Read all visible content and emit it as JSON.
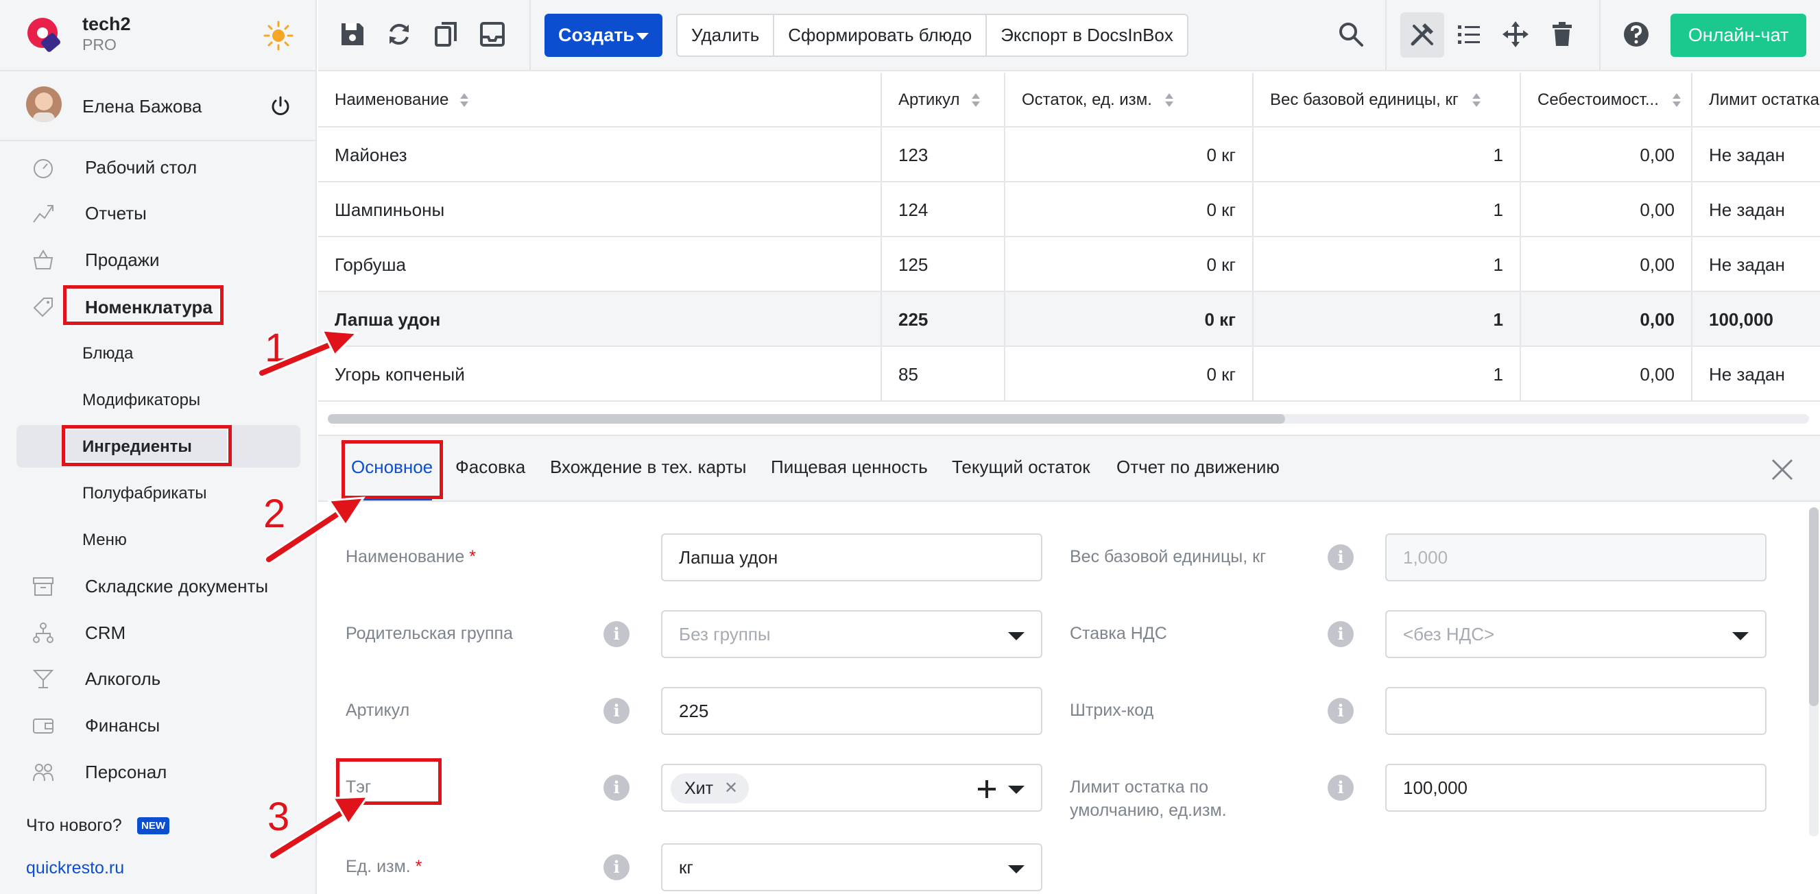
{
  "brand": {
    "name": "tech2",
    "plan": "PRO"
  },
  "user": {
    "name": "Елена Бажова"
  },
  "nav": {
    "items": [
      {
        "label": "Рабочий стол",
        "icon": "dashboard-icon"
      },
      {
        "label": "Отчеты",
        "icon": "reports-icon"
      },
      {
        "label": "Продажи",
        "icon": "basket-icon"
      },
      {
        "label": "Номенклатура",
        "icon": "tag-icon"
      },
      {
        "label": "Складские документы",
        "icon": "archive-icon"
      },
      {
        "label": "CRM",
        "icon": "hierarchy-icon"
      },
      {
        "label": "Алкоголь",
        "icon": "cocktail-icon"
      },
      {
        "label": "Финансы",
        "icon": "wallet-icon"
      },
      {
        "label": "Персонал",
        "icon": "people-icon"
      }
    ],
    "sub_items": [
      {
        "label": "Блюда"
      },
      {
        "label": "Модификаторы"
      },
      {
        "label": "Ингредиенты"
      },
      {
        "label": "Полуфабрикаты"
      },
      {
        "label": "Меню"
      }
    ],
    "whats_new": "Что нового?",
    "new_badge": "NEW",
    "site_link": "quickresto.ru"
  },
  "toolbar": {
    "create_label": "Создать",
    "buttons": [
      "Удалить",
      "Сформировать блюдо",
      "Экспорт в DocsInBox"
    ],
    "chat_label": "Онлайн-чат"
  },
  "table": {
    "columns": [
      "Наименование",
      "Артикул",
      "Остаток, ед. изм.",
      "Вес базовой единицы, кг",
      "Себестоимост...",
      "Лимит остатка"
    ],
    "rows": [
      [
        "Майонез",
        "123",
        "0 кг",
        "1",
        "0,00",
        "Не задан"
      ],
      [
        "Шампиньоны",
        "124",
        "0 кг",
        "1",
        "0,00",
        "Не задан"
      ],
      [
        "Горбуша",
        "125",
        "0 кг",
        "1",
        "0,00",
        "Не задан"
      ],
      [
        "Лапша удон",
        "225",
        "0 кг",
        "1",
        "0,00",
        "100,000"
      ],
      [
        "Угорь копченый",
        "85",
        "0 кг",
        "1",
        "0,00",
        "Не задан"
      ]
    ]
  },
  "tabs": [
    "Основное",
    "Фасовка",
    "Вхождение в тех. карты",
    "Пищевая ценность",
    "Текущий остаток",
    "Отчет по движению"
  ],
  "form": {
    "name_label": "Наименование",
    "name_value": "Лапша удон",
    "parent_label": "Родительская группа",
    "parent_value": "Без группы",
    "article_label": "Артикул",
    "article_value": "225",
    "tag_label": "Тэг",
    "tag_chip": "Хит",
    "unit_label": "Ед. изм.",
    "unit_value": "кг",
    "weight_label": "Вес базовой единицы, кг",
    "weight_value": "1,000",
    "vat_label": "Ставка НДС",
    "vat_value": "<без НДС>",
    "barcode_label": "Штрих-код",
    "barcode_value": "",
    "limit_label_1": "Лимит остатка по",
    "limit_label_2": "умолчанию, ед.изм.",
    "limit_value": "100,000"
  },
  "annotations": {
    "n1": "1",
    "n2": "2",
    "n3": "3"
  },
  "colors": {
    "accent": "#0b4fd0",
    "chat": "#1bc98e",
    "callout": "#e0131b"
  }
}
